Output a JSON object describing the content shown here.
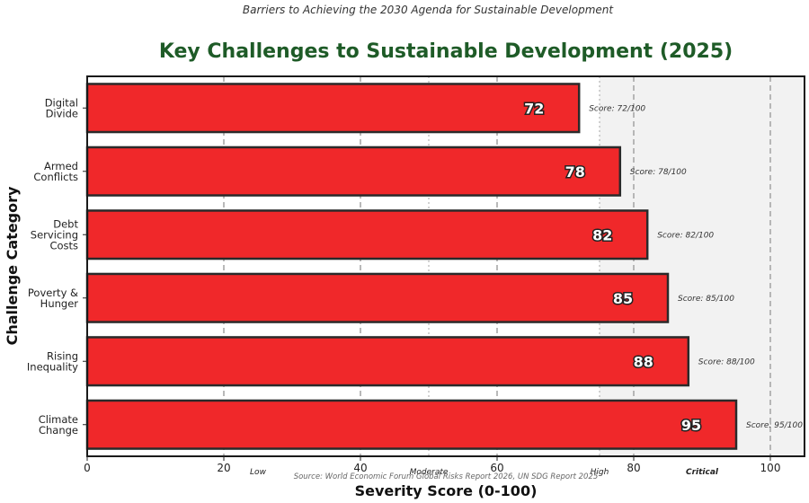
{
  "chart_data": {
    "type": "bar",
    "orientation": "horizontal",
    "supertitle": "Barriers to Achieving the 2030 Agenda for Sustainable Development",
    "title": "Key Challenges to Sustainable Development (2025)",
    "title_color": "#1e5b27",
    "xlabel": "Severity Score (0-100)",
    "ylabel": "Challenge Category",
    "xlim": [
      0,
      105
    ],
    "xticks": [
      0,
      20,
      40,
      60,
      80,
      100
    ],
    "categories": [
      [
        "Digital",
        "Divide"
      ],
      [
        "Armed",
        "Conflicts"
      ],
      [
        "Debt",
        "Servicing",
        "Costs"
      ],
      [
        "Poverty &",
        "Hunger"
      ],
      [
        "Rising",
        "Inequality"
      ],
      [
        "Climate",
        "Change"
      ]
    ],
    "values": [
      72,
      78,
      82,
      85,
      88,
      95
    ],
    "bar_labels": [
      "72",
      "78",
      "82",
      "85",
      "88",
      "95"
    ],
    "score_notes": [
      "Score: 72/100",
      "Score: 78/100",
      "Score: 82/100",
      "Score: 85/100",
      "Score: 88/100",
      "Score: 95/100"
    ],
    "bar_color": "#f0282a",
    "bar_edge_color": "#2a2a2a",
    "shaded_region": [
      75,
      105
    ],
    "dashed_lines": [
      20,
      40,
      60,
      80,
      100
    ],
    "dotted_lines": [
      50,
      75
    ],
    "zones": [
      {
        "label": "Low",
        "at": 25
      },
      {
        "label": "Moderate",
        "at": 50
      },
      {
        "label": "High",
        "at": 75
      },
      {
        "label": "Critical",
        "at": 90
      }
    ],
    "source": "Source: World Economic Forum Global Risks Report 2026, UN SDG Report 2025"
  }
}
